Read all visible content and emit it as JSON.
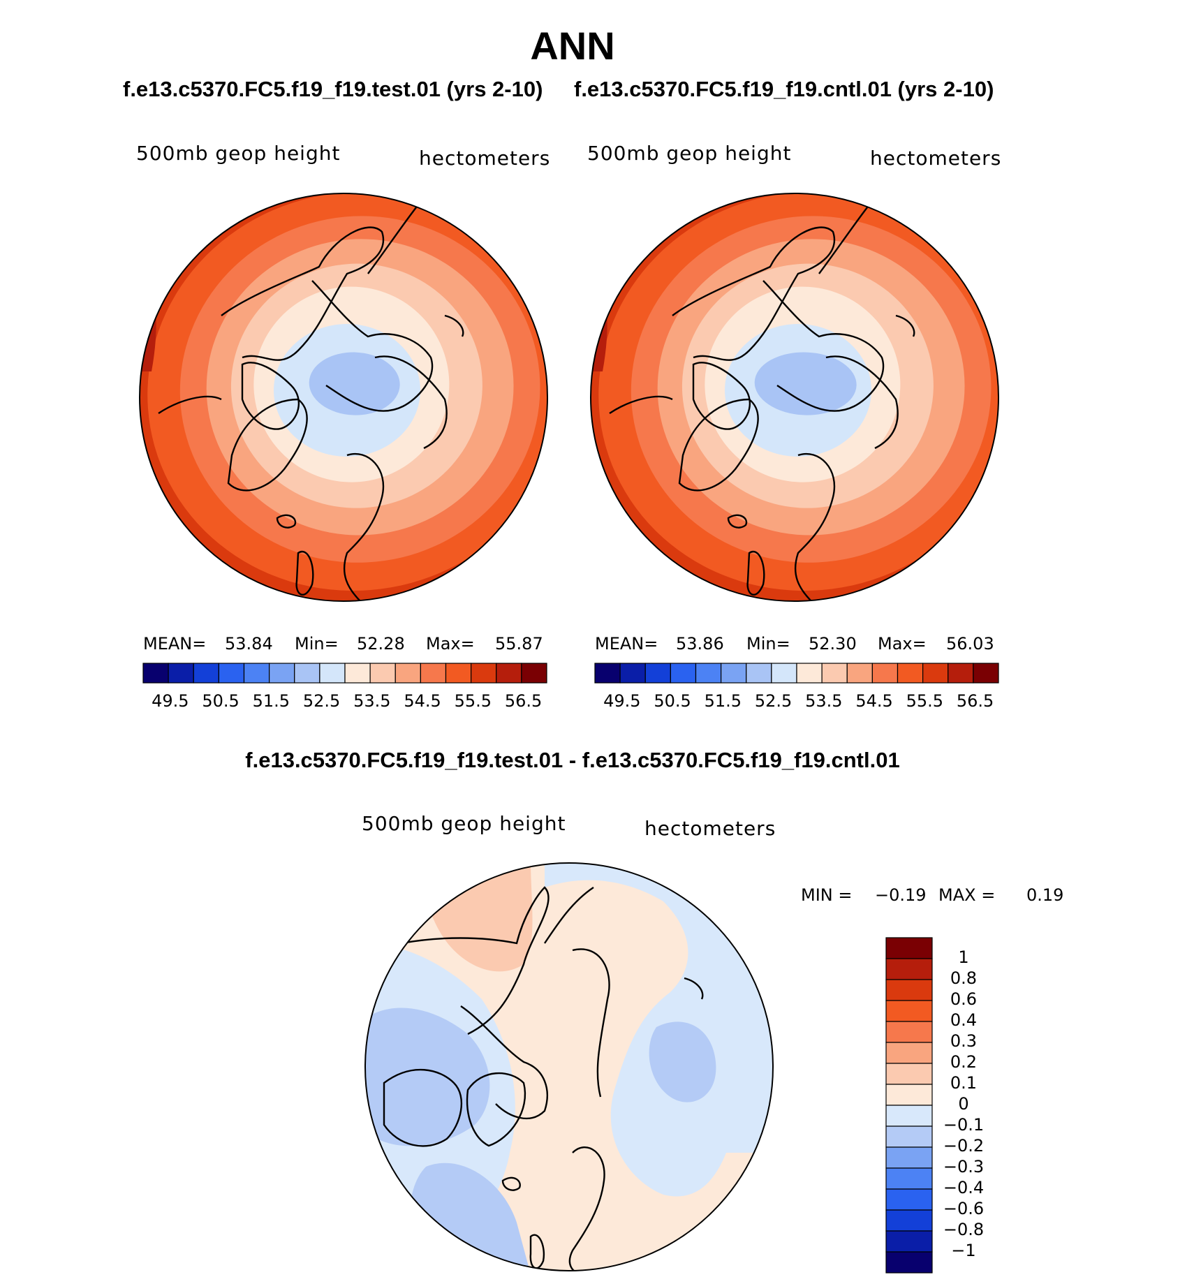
{
  "title": "ANN",
  "subtitle_test": "f.e13.c5370.FC5.f19_f19.test.01 (yrs 2-10)",
  "subtitle_cntl": "f.e13.c5370.FC5.f19_f19.cntl.01 (yrs 2-10)",
  "diff_title": "f.e13.c5370.FC5.f19_f19.test.01 - f.e13.c5370.FC5.f19_f19.cntl.01",
  "colors": {
    "abs_levels": [
      "#08006e",
      "#0a1ea8",
      "#1340d8",
      "#2a62f0",
      "#4c82f4",
      "#7aa3f3",
      "#a9c4f5",
      "#d4e6fa",
      "#fde9d9",
      "#fbcab0",
      "#f9a57f",
      "#f6784c",
      "#f25a22",
      "#da3a0e",
      "#b51e0c",
      "#7a0003"
    ],
    "diff_levels": [
      "#08006e",
      "#0a1ea8",
      "#1340d8",
      "#2a62f0",
      "#4c82f4",
      "#7aa3f3",
      "#b4cbf6",
      "#d8e8fb",
      "#fde9d9",
      "#fbcab0",
      "#f9a57f",
      "#f6784c",
      "#f25a22",
      "#da3a0e",
      "#b51e0c",
      "#7a0003"
    ]
  },
  "chart_data": [
    {
      "type": "heatmap",
      "projection": "polar-stereographic (north)",
      "case": "f.e13.c5370.FC5.f19_f19.test.01 (yrs 2-10)",
      "variable": "500mb geop height",
      "units": "hectometers",
      "stats": {
        "mean_label": "MEAN=",
        "mean": "53.84",
        "min_label": "Min=",
        "min": "52.28",
        "max_label": "Max=",
        "max": "55.87"
      },
      "contour_levels": [
        "49.5",
        "50.5",
        "51.5",
        "52.5",
        "53.5",
        "54.5",
        "55.5",
        "56.5"
      ]
    },
    {
      "type": "heatmap",
      "projection": "polar-stereographic (north)",
      "case": "f.e13.c5370.FC5.f19_f19.cntl.01 (yrs 2-10)",
      "variable": "500mb geop height",
      "units": "hectometers",
      "stats": {
        "mean_label": "MEAN=",
        "mean": "53.86",
        "min_label": "Min=",
        "min": "52.30",
        "max_label": "Max=",
        "max": "56.03"
      },
      "contour_levels": [
        "49.5",
        "50.5",
        "51.5",
        "52.5",
        "53.5",
        "54.5",
        "55.5",
        "56.5"
      ]
    },
    {
      "type": "heatmap",
      "projection": "polar-stereographic (north)",
      "case": "difference test - cntl",
      "variable": "500mb geop height",
      "units": "hectometers",
      "stats": {
        "min_label": "MIN =",
        "min": "−0.19",
        "max_label": "MAX =",
        "max": "0.19"
      },
      "contour_levels": [
        "1",
        "0.8",
        "0.6",
        "0.4",
        "0.3",
        "0.2",
        "0.1",
        "0",
        "−0.1",
        "−0.2",
        "−0.3",
        "−0.4",
        "−0.6",
        "−0.8",
        "−1"
      ]
    }
  ]
}
